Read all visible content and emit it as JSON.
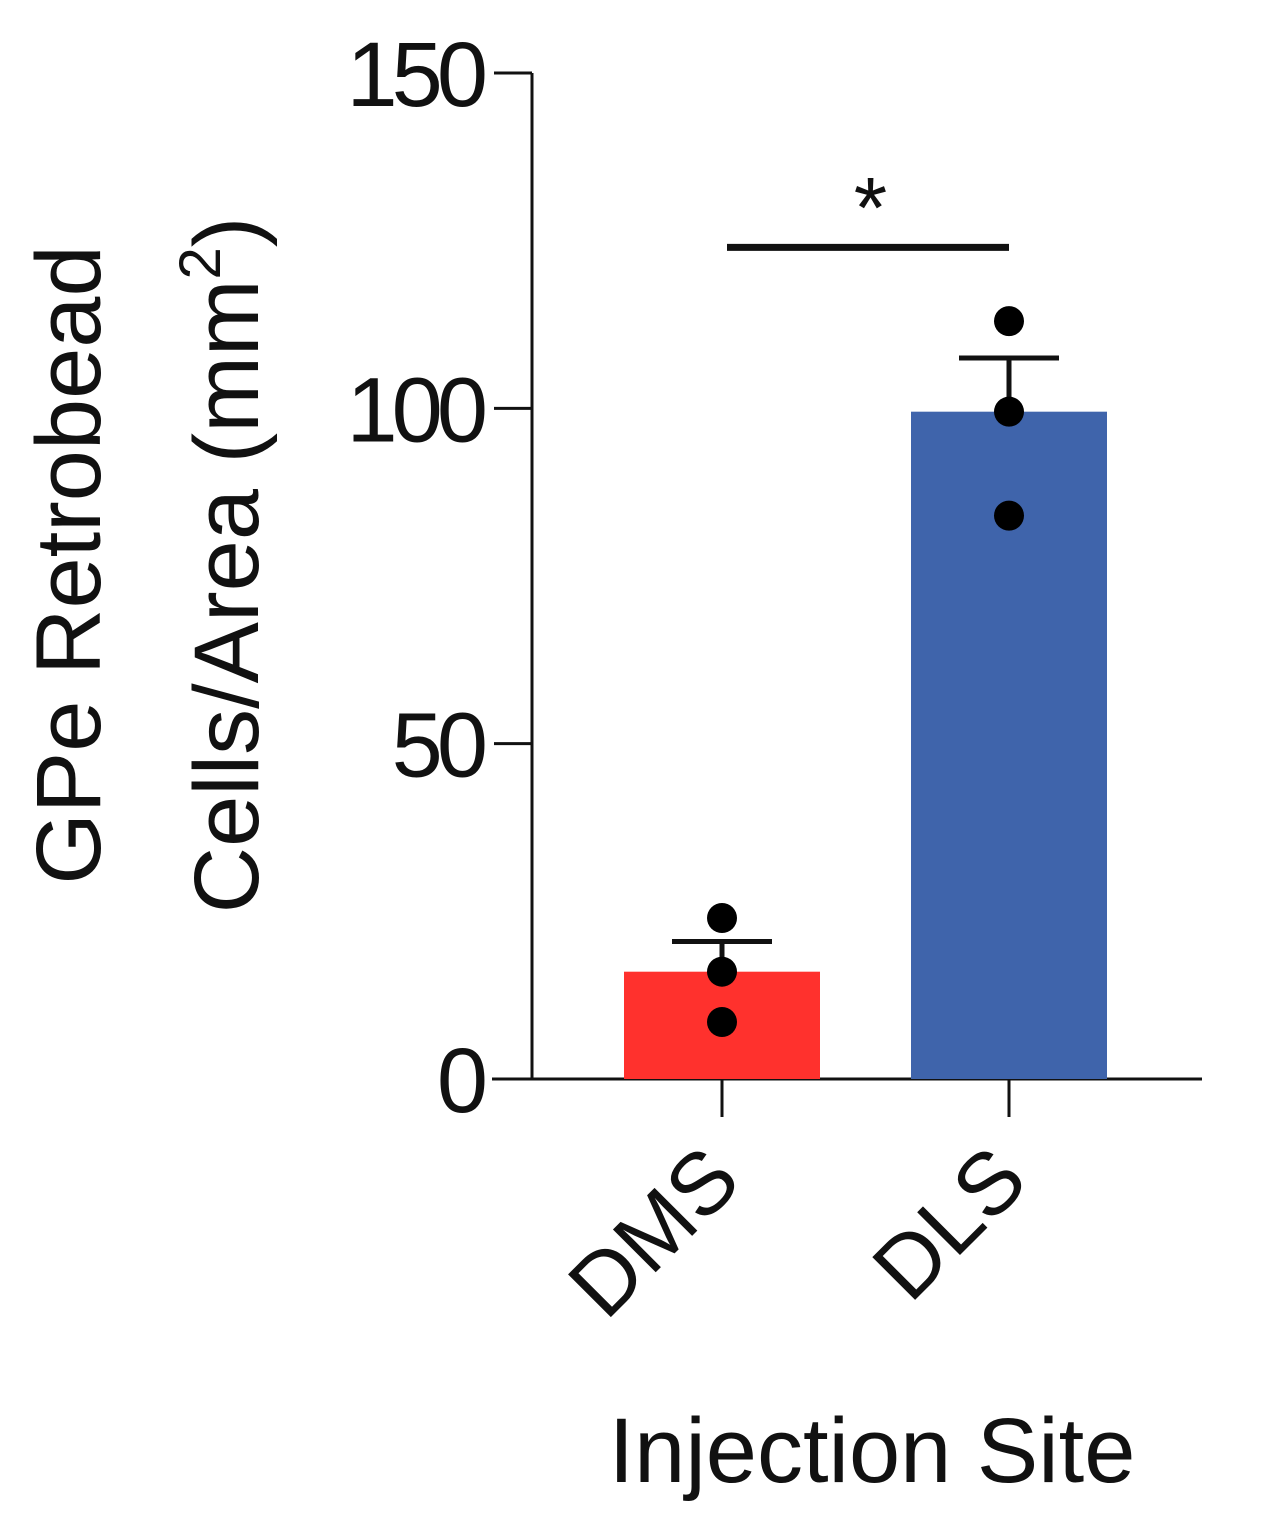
{
  "chart_data": {
    "type": "bar",
    "categories": [
      "DMS",
      "DLS"
    ],
    "values": [
      16,
      99.5
    ],
    "colors": [
      "#ff312d",
      "#3f64ab"
    ],
    "errors": [
      4.5,
      8
    ],
    "points": [
      [
        24,
        16,
        8.5
      ],
      [
        113,
        99.5,
        84
      ]
    ],
    "ylim": [
      0,
      150
    ],
    "yticks": [
      "0",
      "50",
      "100",
      "150"
    ],
    "ytick_values": [
      0,
      50,
      100,
      150
    ],
    "ylabel_line1": "GPe Retrobead",
    "ylabel_line2_main": "Cells/Area (mm",
    "ylabel_line2_sup": "2",
    "ylabel_line2_end": ")",
    "xlabel": "Injection Site",
    "significance": {
      "label": "*",
      "between": [
        0,
        1
      ],
      "y": 124
    }
  }
}
